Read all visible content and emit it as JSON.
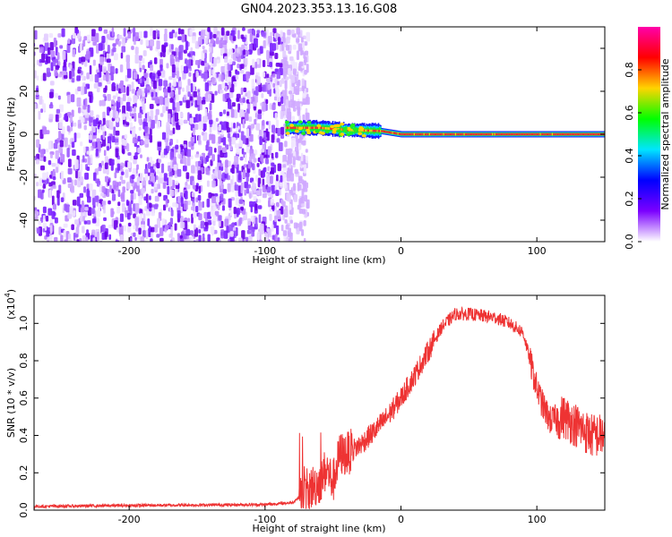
{
  "title": "GN04.2023.353.13.16.G08",
  "chart_data": [
    {
      "type": "heatmap",
      "title": "GN04.2023.353.13.16.G08",
      "xlabel": "Height of straight line (km)",
      "ylabel": "Frequency (Hz)",
      "xlim": [
        -270,
        150
      ],
      "ylim": [
        -50,
        50
      ],
      "x_ticks": [
        -200,
        -100,
        0,
        100
      ],
      "x_tick_labels": [
        "-200",
        "-100",
        "0",
        "100"
      ],
      "y_ticks": [
        -40,
        -20,
        0,
        20,
        40
      ],
      "y_tick_labels": [
        "-40",
        "-20",
        "0",
        "20",
        "40"
      ],
      "noise_region_x": [
        -270,
        -75
      ],
      "ridge": {
        "description_free": true,
        "points": [
          {
            "x": -85,
            "y": 3
          },
          {
            "x": -60,
            "y": 3
          },
          {
            "x": -40,
            "y": 2
          },
          {
            "x": -15,
            "y": 1.5
          },
          {
            "x": 0,
            "y": 0
          },
          {
            "x": 150,
            "y": 0
          }
        ]
      },
      "colorbar": {
        "label": "Normalized spectral amplitude",
        "range": [
          0,
          1
        ],
        "ticks": [
          0.0,
          0.2,
          0.4,
          0.6,
          0.8
        ],
        "tick_labels": [
          "0.0",
          "0.2",
          "0.4",
          "0.6",
          "0.8"
        ],
        "colors": [
          "#ffffff",
          "#7b00ff",
          "#0000ff",
          "#00e5ff",
          "#00ff00",
          "#ffd400",
          "#ff0000",
          "#ff00aa"
        ]
      },
      "grid": false
    },
    {
      "type": "line",
      "xlabel": "Height of straight line (km)",
      "ylabel": "SNR (10 * v/v)",
      "scale_label": "(x10",
      "scale_exp": "4",
      "scale_close": ")",
      "xlim": [
        -270,
        150
      ],
      "ylim": [
        0,
        1.15
      ],
      "x_ticks": [
        -200,
        -100,
        0,
        100
      ],
      "x_tick_labels": [
        "-200",
        "-100",
        "0",
        "100"
      ],
      "y_ticks": [
        0.0,
        0.2,
        0.4,
        0.6,
        0.8,
        1.0
      ],
      "y_tick_labels": [
        "0.0",
        "0.2",
        "0.4",
        "0.6",
        "0.8",
        "1.0"
      ],
      "series": [
        {
          "color": "#ee3333",
          "x": [
            -270,
            -200,
            -100,
            -80,
            -70,
            -60,
            -55,
            -50,
            -45,
            -40,
            -30,
            -20,
            -10,
            0,
            10,
            20,
            30,
            40,
            50,
            60,
            70,
            80,
            90,
            95,
            100,
            105,
            110,
            120,
            130,
            140,
            150
          ],
          "y": [
            0.02,
            0.025,
            0.03,
            0.04,
            0.1,
            0.15,
            0.22,
            0.15,
            0.3,
            0.3,
            0.35,
            0.42,
            0.5,
            0.6,
            0.72,
            0.85,
            0.98,
            1.05,
            1.05,
            1.04,
            1.03,
            1.0,
            0.95,
            0.8,
            0.65,
            0.55,
            0.48,
            0.5,
            0.45,
            0.4,
            0.4
          ]
        }
      ],
      "grid": false
    }
  ]
}
